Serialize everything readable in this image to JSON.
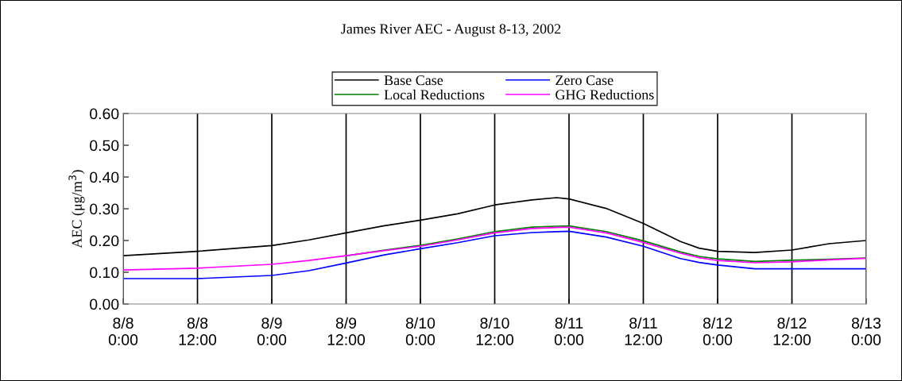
{
  "chart_data": {
    "type": "line",
    "title": "James River AEC - August 8-13, 2002",
    "ylabel": "AEC (μg/m$^{3}$)",
    "x": [
      "2002-08-08T00:00",
      "2002-08-08T12:00",
      "2002-08-09T00:00",
      "2002-08-09T06:00",
      "2002-08-09T12:00",
      "2002-08-09T18:00",
      "2002-08-10T00:00",
      "2002-08-10T06:00",
      "2002-08-10T12:00",
      "2002-08-10T18:00",
      "2002-08-10T22:00",
      "2002-08-11T00:00",
      "2002-08-11T06:00",
      "2002-08-11T12:00",
      "2002-08-11T18:00",
      "2002-08-11T21:00",
      "2002-08-12T00:00",
      "2002-08-12T06:00",
      "2002-08-12T12:00",
      "2002-08-12T18:00",
      "2002-08-13T00:00"
    ],
    "series": [
      {
        "name": "Base Case",
        "color": "#000000",
        "values": [
          0.152,
          0.166,
          0.184,
          0.202,
          0.224,
          0.246,
          0.264,
          0.284,
          0.312,
          0.328,
          0.335,
          0.331,
          0.301,
          0.254,
          0.197,
          0.176,
          0.166,
          0.162,
          0.17,
          0.19,
          0.2
        ]
      },
      {
        "name": "Zero Case",
        "color": "#0000ff",
        "values": [
          0.08,
          0.08,
          0.09,
          0.105,
          0.129,
          0.154,
          0.174,
          0.193,
          0.215,
          0.225,
          0.228,
          0.229,
          0.211,
          0.182,
          0.143,
          0.131,
          0.123,
          0.111,
          0.111,
          0.111,
          0.111
        ]
      },
      {
        "name": "Local Reductions",
        "color": "#008000",
        "values": [
          null,
          null,
          null,
          null,
          0.152,
          0.169,
          0.185,
          0.205,
          0.228,
          0.242,
          0.245,
          0.246,
          0.228,
          0.199,
          0.164,
          0.15,
          0.142,
          0.134,
          0.138,
          0.141,
          0.145
        ]
      },
      {
        "name": "GHG Reductions",
        "color": "#ff00ff",
        "values": [
          0.107,
          0.113,
          0.125,
          0.137,
          0.152,
          0.168,
          0.182,
          0.202,
          0.224,
          0.238,
          0.241,
          0.242,
          0.224,
          0.194,
          0.16,
          0.146,
          0.137,
          0.13,
          0.133,
          0.139,
          0.144
        ]
      }
    ],
    "xlim": [
      "2002-08-08T00:00",
      "2002-08-13T00:00"
    ],
    "xticks": [
      {
        "value": "2002-08-08T00:00",
        "label": "8/8\n0:00"
      },
      {
        "value": "2002-08-08T12:00",
        "label": "8/8\n12:00"
      },
      {
        "value": "2002-08-09T00:00",
        "label": "8/9\n0:00"
      },
      {
        "value": "2002-08-09T12:00",
        "label": "8/9\n12:00"
      },
      {
        "value": "2002-08-10T00:00",
        "label": "8/10\n0:00"
      },
      {
        "value": "2002-08-10T12:00",
        "label": "8/10\n12:00"
      },
      {
        "value": "2002-08-11T00:00",
        "label": "8/11\n0:00"
      },
      {
        "value": "2002-08-11T12:00",
        "label": "8/11\n12:00"
      },
      {
        "value": "2002-08-12T00:00",
        "label": "8/12\n0:00"
      },
      {
        "value": "2002-08-12T12:00",
        "label": "8/12\n12:00"
      },
      {
        "value": "2002-08-13T00:00",
        "label": "8/13\n0:00"
      }
    ],
    "ylim": [
      0,
      0.6
    ],
    "yticks": [
      {
        "value": 0,
        "label": "0.00"
      },
      {
        "value": 0.1,
        "label": "0.10"
      },
      {
        "value": 0.2,
        "label": "0.20"
      },
      {
        "value": 0.3,
        "label": "0.30"
      },
      {
        "value": 0.4,
        "label": "0.40"
      },
      {
        "value": 0.5,
        "label": "0.50"
      },
      {
        "value": 0.6,
        "label": "0.60"
      }
    ],
    "grid": "x",
    "legend": "top",
    "marker": "none",
    "line_style": "solid"
  }
}
